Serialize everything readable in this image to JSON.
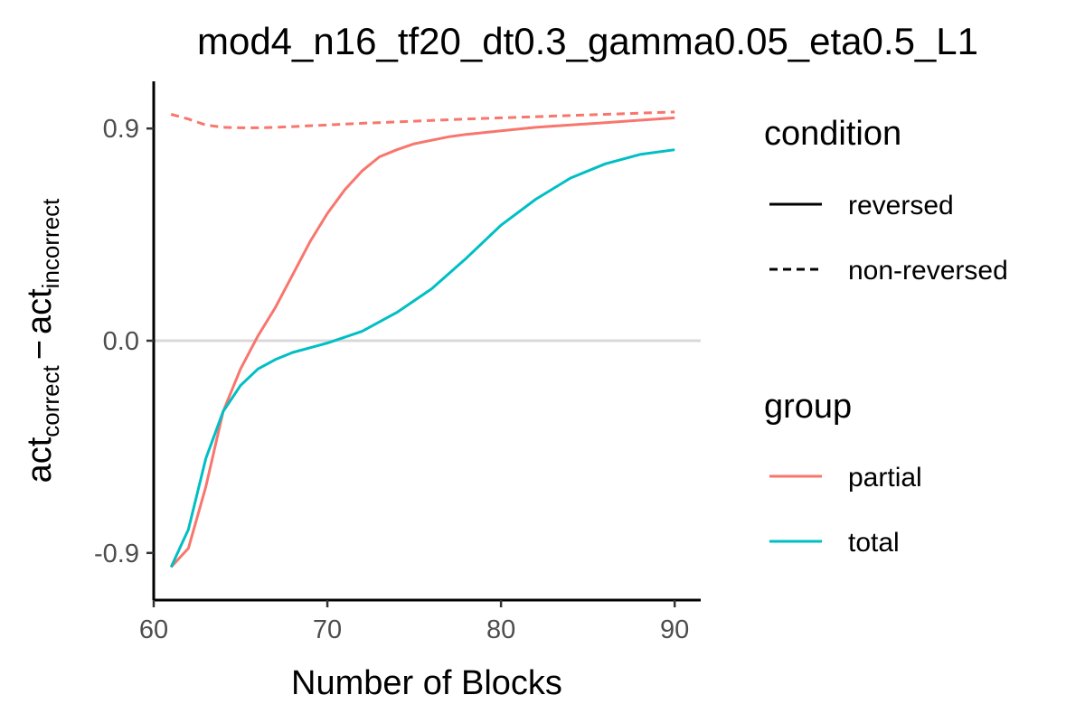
{
  "chart_data": {
    "type": "line",
    "title": "mod4_n16_tf20_dt0.3_gamma0.05_eta0.5_L1",
    "xlabel": "Number of Blocks",
    "ylabel": {
      "base1": "act",
      "sub1": "correct",
      "operator": "−",
      "base2": "act",
      "sub2": "incorrect"
    },
    "xlim": [
      60,
      91.5
    ],
    "ylim": [
      -1.1,
      1.1
    ],
    "x_ticks": [
      60,
      70,
      80,
      90
    ],
    "x_tick_labels": [
      "60",
      "70",
      "80",
      "90"
    ],
    "y_ticks": [
      -0.9,
      0.0,
      0.9
    ],
    "y_tick_labels": [
      "-0.9",
      "0.0",
      "0.9"
    ],
    "reference_line": {
      "y": 0.0,
      "color": "#d9d9d9"
    },
    "grid": false,
    "legend_placement": "right",
    "legends": [
      {
        "title": "condition",
        "entries": [
          {
            "label": "reversed",
            "linetype": "solid",
            "color": "#000000"
          },
          {
            "label": "non-reversed",
            "linetype": "dashed",
            "color": "#000000"
          }
        ]
      },
      {
        "title": "group",
        "entries": [
          {
            "label": "partial",
            "linetype": "solid",
            "color": "#F8766D"
          },
          {
            "label": "total",
            "linetype": "solid",
            "color": "#00BFC4"
          }
        ]
      }
    ],
    "series": [
      {
        "group": "partial",
        "condition": "non-reversed",
        "color": "#F8766D",
        "linetype": "dashed",
        "x": [
          61,
          62,
          63,
          64,
          65,
          66,
          67,
          68,
          69,
          70,
          72,
          74,
          76,
          78,
          80,
          82,
          84,
          86,
          88,
          90
        ],
        "y": [
          0.96,
          0.94,
          0.915,
          0.905,
          0.903,
          0.903,
          0.905,
          0.908,
          0.912,
          0.915,
          0.922,
          0.928,
          0.934,
          0.94,
          0.945,
          0.95,
          0.955,
          0.96,
          0.965,
          0.97
        ]
      },
      {
        "group": "partial",
        "condition": "reversed",
        "color": "#F8766D",
        "linetype": "solid",
        "x": [
          61,
          62,
          63,
          64,
          65,
          66,
          67,
          68,
          69,
          70,
          71,
          72,
          73,
          74,
          75,
          76,
          77,
          78,
          80,
          82,
          84,
          86,
          88,
          90
        ],
        "y": [
          -0.96,
          -0.88,
          -0.62,
          -0.3,
          -0.12,
          0.02,
          0.14,
          0.28,
          0.42,
          0.54,
          0.64,
          0.72,
          0.78,
          0.81,
          0.835,
          0.85,
          0.865,
          0.875,
          0.89,
          0.905,
          0.915,
          0.925,
          0.935,
          0.945
        ]
      },
      {
        "group": "total",
        "condition": "reversed",
        "color": "#00BFC4",
        "linetype": "solid",
        "x": [
          61,
          62,
          63,
          64,
          65,
          66,
          67,
          68,
          70,
          72,
          74,
          76,
          78,
          80,
          82,
          84,
          86,
          88,
          90
        ],
        "y": [
          -0.96,
          -0.8,
          -0.5,
          -0.3,
          -0.19,
          -0.12,
          -0.08,
          -0.05,
          -0.01,
          0.04,
          0.12,
          0.22,
          0.35,
          0.49,
          0.6,
          0.69,
          0.75,
          0.79,
          0.81
        ]
      }
    ]
  }
}
